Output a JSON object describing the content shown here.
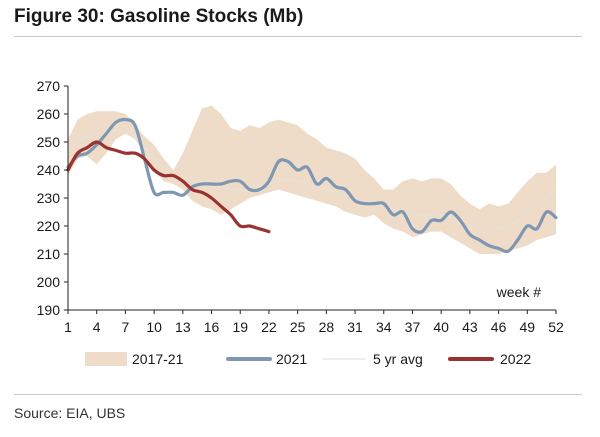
{
  "header": {
    "title": "Figure 30: Gasoline Stocks (Mb)"
  },
  "footer": {
    "source": "Source: EIA, UBS"
  },
  "chart_data": {
    "type": "line",
    "xlabel": "",
    "ylabel": "",
    "xlim": [
      1,
      52
    ],
    "ylim": [
      190,
      270
    ],
    "xticks": [
      1,
      4,
      7,
      10,
      13,
      16,
      19,
      22,
      25,
      28,
      31,
      34,
      37,
      40,
      43,
      46,
      49,
      52
    ],
    "yticks": [
      190,
      200,
      210,
      220,
      230,
      240,
      250,
      260,
      270
    ],
    "grid": false,
    "legend_position": "bottom",
    "annotation": "week #",
    "colors": {
      "range": "#efdcc8",
      "s2021": "#7f97b2",
      "avg": "#e6e1dc",
      "s2022": "#9b3232",
      "axis": "#222222"
    },
    "range_band": {
      "name": "2017-21",
      "x": [
        1,
        2,
        3,
        4,
        5,
        6,
        7,
        8,
        9,
        10,
        11,
        12,
        13,
        14,
        15,
        16,
        17,
        18,
        19,
        20,
        21,
        22,
        23,
        24,
        25,
        26,
        27,
        28,
        29,
        30,
        31,
        32,
        33,
        34,
        35,
        36,
        37,
        38,
        39,
        40,
        41,
        42,
        43,
        44,
        45,
        46,
        47,
        48,
        49,
        50,
        51,
        52
      ],
      "lower": [
        238,
        244,
        245,
        242,
        246,
        251,
        253,
        251,
        246,
        240,
        236,
        235,
        233,
        229,
        227,
        226,
        224,
        226,
        228,
        230,
        231,
        232,
        233,
        232,
        231,
        230,
        229,
        228,
        227,
        225,
        224,
        223,
        224,
        221,
        219,
        218,
        216,
        217,
        218,
        218,
        216,
        214,
        212,
        210,
        210,
        210,
        211,
        212,
        213,
        215,
        216,
        217
      ],
      "upper": [
        251,
        258,
        260,
        261,
        261,
        261,
        260,
        256,
        252,
        249,
        244,
        240,
        246,
        254,
        262,
        263,
        260,
        255,
        254,
        256,
        255,
        257,
        258,
        257,
        256,
        253,
        251,
        248,
        247,
        246,
        244,
        240,
        237,
        233,
        233,
        236,
        237,
        236,
        237,
        237,
        235,
        231,
        228,
        226,
        228,
        227,
        228,
        232,
        236,
        239,
        239,
        242
      ]
    },
    "series": [
      {
        "name": "2021",
        "x": [
          1,
          2,
          3,
          4,
          5,
          6,
          7,
          8,
          9,
          10,
          11,
          12,
          13,
          14,
          15,
          16,
          17,
          18,
          19,
          20,
          21,
          22,
          23,
          24,
          25,
          26,
          27,
          28,
          29,
          30,
          31,
          32,
          33,
          34,
          35,
          36,
          37,
          38,
          39,
          40,
          41,
          42,
          43,
          44,
          45,
          46,
          47,
          48,
          49,
          50,
          51,
          52
        ],
        "values": [
          241,
          245,
          246,
          249,
          253,
          257,
          258,
          256,
          244,
          232,
          232,
          232,
          231,
          234,
          235,
          235,
          235,
          236,
          236,
          233,
          233,
          236,
          243,
          243,
          240,
          241,
          235,
          237,
          234,
          233,
          229,
          228,
          228,
          228,
          224,
          225,
          219,
          218,
          222,
          222,
          225,
          222,
          217,
          215,
          213,
          212,
          211,
          215,
          220,
          219,
          225,
          223
        ]
      },
      {
        "name": "5 yr avg",
        "x": [
          1,
          2,
          3,
          4,
          5,
          6,
          7,
          8,
          9,
          10,
          11,
          12,
          13,
          14,
          15,
          16,
          17,
          18,
          19,
          20,
          21,
          22,
          23,
          24,
          25,
          26,
          27,
          28,
          29,
          30,
          31,
          32,
          33,
          34,
          35,
          36,
          37,
          38,
          39,
          40,
          41,
          42,
          43,
          44,
          45,
          46,
          47,
          48,
          49,
          50,
          51,
          52
        ],
        "values": [
          246,
          250,
          252,
          253,
          254,
          254,
          254,
          252,
          248,
          244,
          240,
          238,
          237,
          237,
          236,
          235,
          234,
          233,
          233,
          233,
          234,
          235,
          236,
          236,
          236,
          235,
          234,
          233,
          232,
          231,
          230,
          229,
          228,
          227,
          226,
          225,
          224,
          224,
          224,
          224,
          223,
          221,
          219,
          218,
          218,
          219,
          220,
          222,
          225,
          228,
          230,
          232
        ]
      },
      {
        "name": "2022",
        "x": [
          1,
          2,
          3,
          4,
          5,
          6,
          7,
          8,
          9,
          10,
          11,
          12,
          13,
          14,
          15,
          16,
          17,
          18,
          19,
          20,
          21,
          22
        ],
        "values": [
          240,
          246,
          248,
          250,
          248,
          247,
          246,
          246,
          244,
          240,
          238,
          238,
          236,
          233,
          232,
          230,
          227,
          224,
          220,
          220,
          219,
          218
        ]
      }
    ],
    "legend": [
      "2017-21",
      "2021",
      "5 yr avg",
      "2022"
    ]
  }
}
